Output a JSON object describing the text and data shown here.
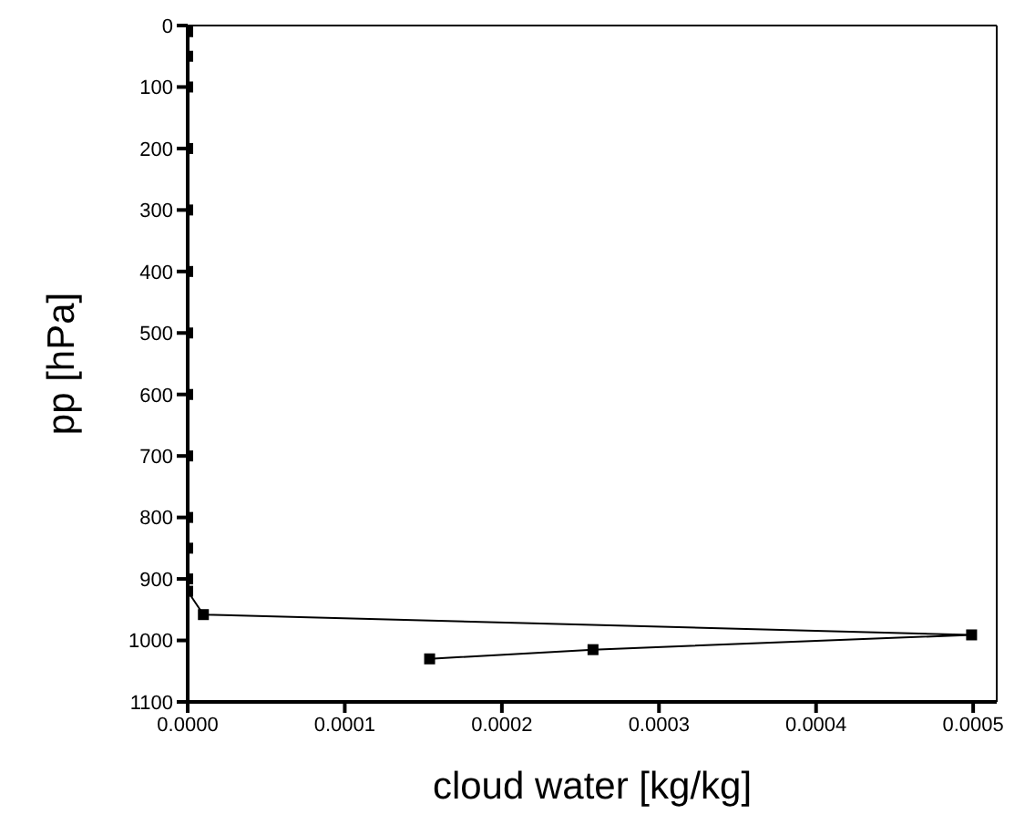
{
  "chart_data": {
    "type": "line",
    "xlabel": "cloud water [kg/kg]",
    "ylabel": "pp [hPa]",
    "x": [
      0,
      0,
      0,
      0,
      0,
      0,
      0,
      0,
      0,
      0,
      0,
      0,
      0,
      1e-05,
      0.000499,
      0.000258,
      0.000154
    ],
    "series": [
      {
        "color": "#000000",
        "values": [
          10,
          50,
          100,
          200,
          300,
          400,
          500,
          600,
          700,
          800,
          850,
          900,
          920,
          958,
          991,
          1015,
          1030
        ]
      }
    ],
    "xlim": [
      0,
      0.000515
    ],
    "xticks": [
      {
        "value": 0,
        "label": "0.0000"
      },
      {
        "value": 0.0001,
        "label": "0.0001"
      },
      {
        "value": 0.0002,
        "label": "0.0002"
      },
      {
        "value": 0.0003,
        "label": "0.0003"
      },
      {
        "value": 0.0004,
        "label": "0.0004"
      },
      {
        "value": 0.0005,
        "label": "0.0005"
      }
    ],
    "ylim": [
      1100,
      0
    ],
    "yticks": [
      0,
      100,
      200,
      300,
      400,
      500,
      600,
      700,
      800,
      900,
      1000,
      1100
    ],
    "marker": "square",
    "line_style": "solid",
    "grid": false,
    "legend": false
  }
}
